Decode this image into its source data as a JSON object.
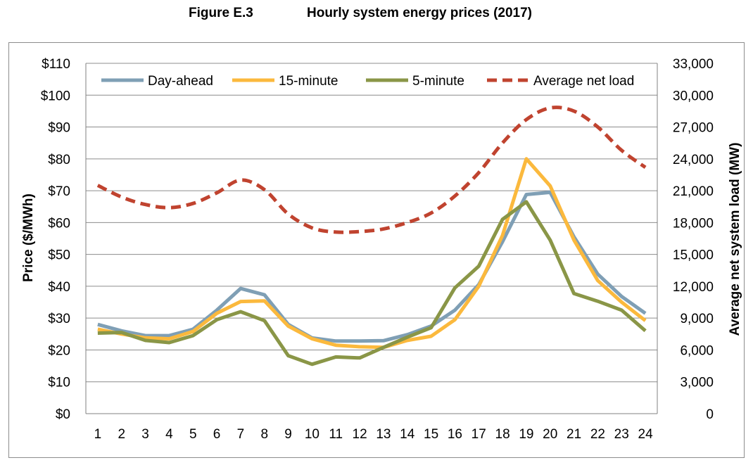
{
  "figure": {
    "number": "Figure E.3",
    "title": "Hourly system energy prices (2017)"
  },
  "chart_data": {
    "type": "line",
    "x": [
      1,
      2,
      3,
      4,
      5,
      6,
      7,
      8,
      9,
      10,
      11,
      12,
      13,
      14,
      15,
      16,
      17,
      18,
      19,
      20,
      21,
      22,
      23,
      24
    ],
    "x_tick_labels": [
      "1",
      "2",
      "3",
      "4",
      "5",
      "6",
      "7",
      "8",
      "9",
      "10",
      "11",
      "12",
      "13",
      "14",
      "15",
      "16",
      "17",
      "18",
      "19",
      "20",
      "21",
      "22",
      "23",
      "24"
    ],
    "ylabel": "Price ($/MWh)",
    "ylim": [
      0,
      110
    ],
    "y_ticks": [
      0,
      10,
      20,
      30,
      40,
      50,
      60,
      70,
      80,
      90,
      100,
      110
    ],
    "y_tick_labels": [
      "$0",
      "$10",
      "$20",
      "$30",
      "$40",
      "$50",
      "$60",
      "$70",
      "$80",
      "$90",
      "$100",
      "$110"
    ],
    "y2label": "Average net system load (MW)",
    "y2lim": [
      0,
      33000
    ],
    "y2_ticks": [
      0,
      3000,
      6000,
      9000,
      12000,
      15000,
      18000,
      21000,
      24000,
      27000,
      30000,
      33000
    ],
    "y2_tick_labels": [
      "0",
      "3,000",
      "6,000",
      "9,000",
      "12,000",
      "15,000",
      "18,000",
      "21,000",
      "24,000",
      "27,000",
      "30,000",
      "33,000"
    ],
    "grid": true,
    "legend_position": "top",
    "series": [
      {
        "name": "Day-ahead",
        "axis": "left",
        "color": "#7F9FB5",
        "dashed": false,
        "values": [
          28,
          26,
          24.5,
          24.5,
          26.5,
          32.5,
          39.3,
          37.3,
          28,
          23.8,
          22.8,
          22.8,
          22.9,
          24.8,
          27.5,
          32.5,
          40.5,
          54,
          68.8,
          69.5,
          55.5,
          43.8,
          36.8,
          31.5
        ]
      },
      {
        "name": "15-minute",
        "axis": "left",
        "color": "#FBB93D",
        "dashed": false,
        "values": [
          26.5,
          25,
          23.8,
          23.5,
          25.8,
          31.5,
          35.2,
          35.4,
          27.5,
          23.5,
          21.5,
          21,
          20.8,
          23,
          24.3,
          29.5,
          40,
          56,
          80,
          71.5,
          54.5,
          41.8,
          35,
          29.2
        ]
      },
      {
        "name": "5-minute",
        "axis": "left",
        "color": "#8A9647",
        "dashed": false,
        "values": [
          25.3,
          25.5,
          23,
          22.3,
          24.5,
          29.5,
          32,
          29.2,
          18.2,
          15.5,
          17.8,
          17.5,
          20.8,
          24,
          27,
          39.5,
          46.3,
          61,
          66.5,
          54.5,
          37.7,
          35.3,
          32.5,
          26
        ]
      },
      {
        "name": "Average net load",
        "axis": "right",
        "color": "#C0432F",
        "dashed": true,
        "values": [
          21500,
          20400,
          19700,
          19400,
          19800,
          20800,
          22000,
          21100,
          18800,
          17500,
          17100,
          17150,
          17400,
          18000,
          18900,
          20500,
          22700,
          25500,
          27700,
          28800,
          28500,
          27000,
          24800,
          23200
        ]
      }
    ]
  }
}
